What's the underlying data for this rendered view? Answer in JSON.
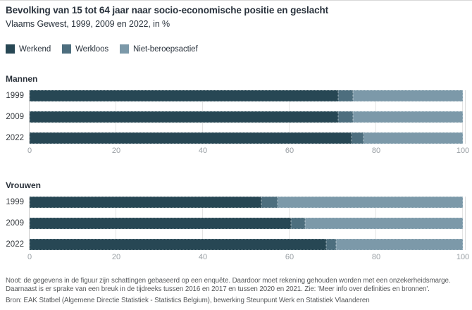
{
  "title": "Bevolking van 15 tot 64 jaar naar socio-economische positie en geslacht",
  "subtitle": "Vlaams Gewest, 1999, 2009 en 2022, in %",
  "legend": [
    {
      "label": "Werkend",
      "color": "#274754"
    },
    {
      "label": "Werkloos",
      "color": "#4d6e7e"
    },
    {
      "label": "Niet-beroepsactief",
      "color": "#7c99a9"
    }
  ],
  "colors": {
    "werkend": "#274754",
    "werkloos": "#4d6e7e",
    "niet_beroepsactief": "#7c99a9",
    "gridline": "#e4e4e4",
    "axis_line": "#cccccc",
    "tick_text": "#9aa0a5",
    "title_text": "#2a333d",
    "footer_text": "#56585a"
  },
  "chart_data": {
    "type": "bar",
    "orientation": "horizontal-stacked",
    "title": "Bevolking van 15 tot 64 jaar naar socio-economische positie en geslacht",
    "subtitle": "Vlaams Gewest, 1999, 2009 en 2022, in %",
    "legend_entries": [
      "Werkend",
      "Werkloos",
      "Niet-beroepsactief"
    ],
    "legend_position": "top-left",
    "xlim": [
      0,
      100
    ],
    "x_ticks": [
      0,
      20,
      40,
      60,
      80,
      100
    ],
    "grid": true,
    "groups": [
      {
        "label": "Mannen",
        "categories": [
          "1999",
          "2009",
          "2022"
        ],
        "series": [
          {
            "name": "Werkend",
            "values": [
              71.3,
              71.2,
              74.3
            ]
          },
          {
            "name": "Werkloos",
            "values": [
              3.3,
              3.4,
              2.8
            ]
          },
          {
            "name": "Niet-beroepsactief",
            "values": [
              25.4,
              25.4,
              22.9
            ]
          }
        ]
      },
      {
        "label": "Vrouwen",
        "categories": [
          "1999",
          "2009",
          "2022"
        ],
        "series": [
          {
            "name": "Werkend",
            "values": [
              53.5,
              60.4,
              68.4
            ]
          },
          {
            "name": "Werkloos",
            "values": [
              3.8,
              3.1,
              2.3
            ]
          },
          {
            "name": "Niet-beroepsactief",
            "values": [
              42.7,
              36.5,
              29.3
            ]
          }
        ]
      }
    ]
  },
  "footer": {
    "noot_lines": [
      "Noot: de gegevens in de figuur zijn schattingen gebaseerd op een enquête. Daardoor moet rekening gehouden worden met een onzekerheidsmarge.",
      "Daarnaast is er sprake van een breuk in de tijdreeks tussen 2016 en 2017 en tussen 2020 en 2021. Zie: 'Meer info over definities en bronnen'."
    ],
    "bron": "Bron: EAK Statbel (Algemene Directie Statistiek - Statistics Belgium), bewerking Steunpunt Werk en Statistiek Vlaanderen"
  }
}
